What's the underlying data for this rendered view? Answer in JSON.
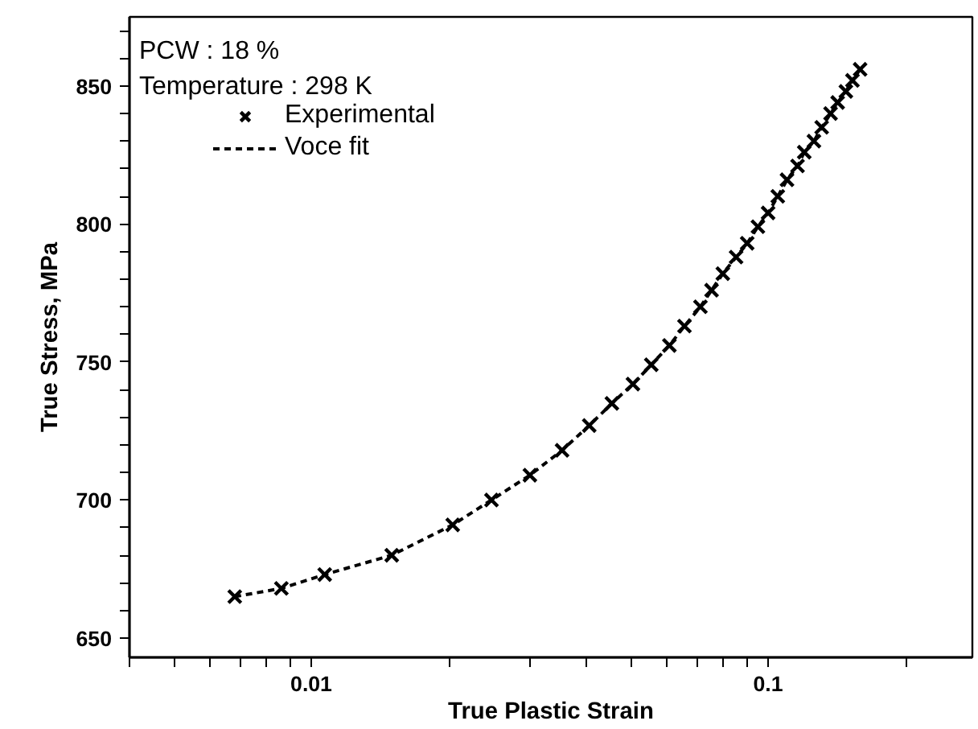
{
  "chart_data": {
    "type": "scatter",
    "xlabel": "True Plastic Strain",
    "ylabel": "True Stress, MPa",
    "annotations": [
      "PCW : 18 %",
      "Temperature : 298 K"
    ],
    "log": "x",
    "xlim": [
      0.004,
      0.28
    ],
    "ylim": [
      643,
      875
    ],
    "xticks": [
      {
        "value": 0.004,
        "label": null
      },
      {
        "value": 0.005,
        "label": null
      },
      {
        "value": 0.006,
        "label": null
      },
      {
        "value": 0.007,
        "label": null
      },
      {
        "value": 0.008,
        "label": null
      },
      {
        "value": 0.009,
        "label": null
      },
      0.01,
      {
        "value": 0.02,
        "label": null
      },
      {
        "value": 0.03,
        "label": null
      },
      {
        "value": 0.04,
        "label": null
      },
      {
        "value": 0.05,
        "label": null
      },
      {
        "value": 0.06,
        "label": null
      },
      {
        "value": 0.07,
        "label": null
      },
      {
        "value": 0.08,
        "label": null
      },
      {
        "value": 0.09,
        "label": null
      },
      0.1,
      {
        "value": 0.2,
        "label": null
      }
    ],
    "yticks": [
      650,
      {
        "value": 660,
        "label": null
      },
      {
        "value": 670,
        "label": null
      },
      {
        "value": 680,
        "label": null
      },
      {
        "value": 690,
        "label": null
      },
      700,
      {
        "value": 710,
        "label": null
      },
      {
        "value": 720,
        "label": null
      },
      {
        "value": 730,
        "label": null
      },
      {
        "value": 740,
        "label": null
      },
      750,
      {
        "value": 760,
        "label": null
      },
      {
        "value": 770,
        "label": null
      },
      {
        "value": 780,
        "label": null
      },
      {
        "value": 790,
        "label": null
      },
      800,
      {
        "value": 810,
        "label": null
      },
      {
        "value": 820,
        "label": null
      },
      {
        "value": 830,
        "label": null
      },
      {
        "value": 840,
        "label": null
      },
      850,
      {
        "value": 860,
        "label": null
      },
      {
        "value": 870,
        "label": null
      }
    ],
    "grid": false,
    "legend": "top left",
    "series": [
      {
        "name": "Experimental",
        "marker": "cross",
        "color": "#000000",
        "x": [
          0.0068,
          0.0086,
          0.0107,
          0.015,
          0.0204,
          0.0248,
          0.0301,
          0.0354,
          0.0406,
          0.0455,
          0.0506,
          0.0555,
          0.0608,
          0.0656,
          0.0711,
          0.0752,
          0.0796,
          0.0851,
          0.09,
          0.095,
          0.1,
          0.105,
          0.11,
          0.116,
          0.12,
          0.126,
          0.131,
          0.137,
          0.142,
          0.148,
          0.153,
          0.159
        ],
        "values": [
          665,
          668,
          673,
          680,
          691,
          700,
          709,
          718,
          727,
          735,
          742,
          749,
          756,
          763,
          770,
          776,
          782,
          788,
          793,
          799,
          804,
          810,
          816,
          821,
          826,
          830,
          835,
          840,
          844,
          848,
          852,
          856
        ]
      },
      {
        "name": "Voce fit",
        "type": "line",
        "line_style": "dashed",
        "color": "#000000",
        "x": [
          0.0068,
          0.0086,
          0.0107,
          0.015,
          0.0204,
          0.0248,
          0.0301,
          0.0354,
          0.0406,
          0.0455,
          0.0506,
          0.0555,
          0.0608,
          0.0656,
          0.0711,
          0.0752,
          0.0796,
          0.0851,
          0.09,
          0.095,
          0.1,
          0.105,
          0.11,
          0.116,
          0.12,
          0.126,
          0.131,
          0.137,
          0.142,
          0.148,
          0.153,
          0.159
        ],
        "values": [
          665,
          668,
          673,
          680,
          691,
          700,
          709,
          718,
          727,
          735,
          742,
          749,
          756,
          763,
          770,
          776,
          782,
          788,
          793,
          799,
          804,
          810,
          816,
          821,
          826,
          830,
          835,
          840,
          844,
          848,
          852,
          856
        ]
      }
    ]
  }
}
